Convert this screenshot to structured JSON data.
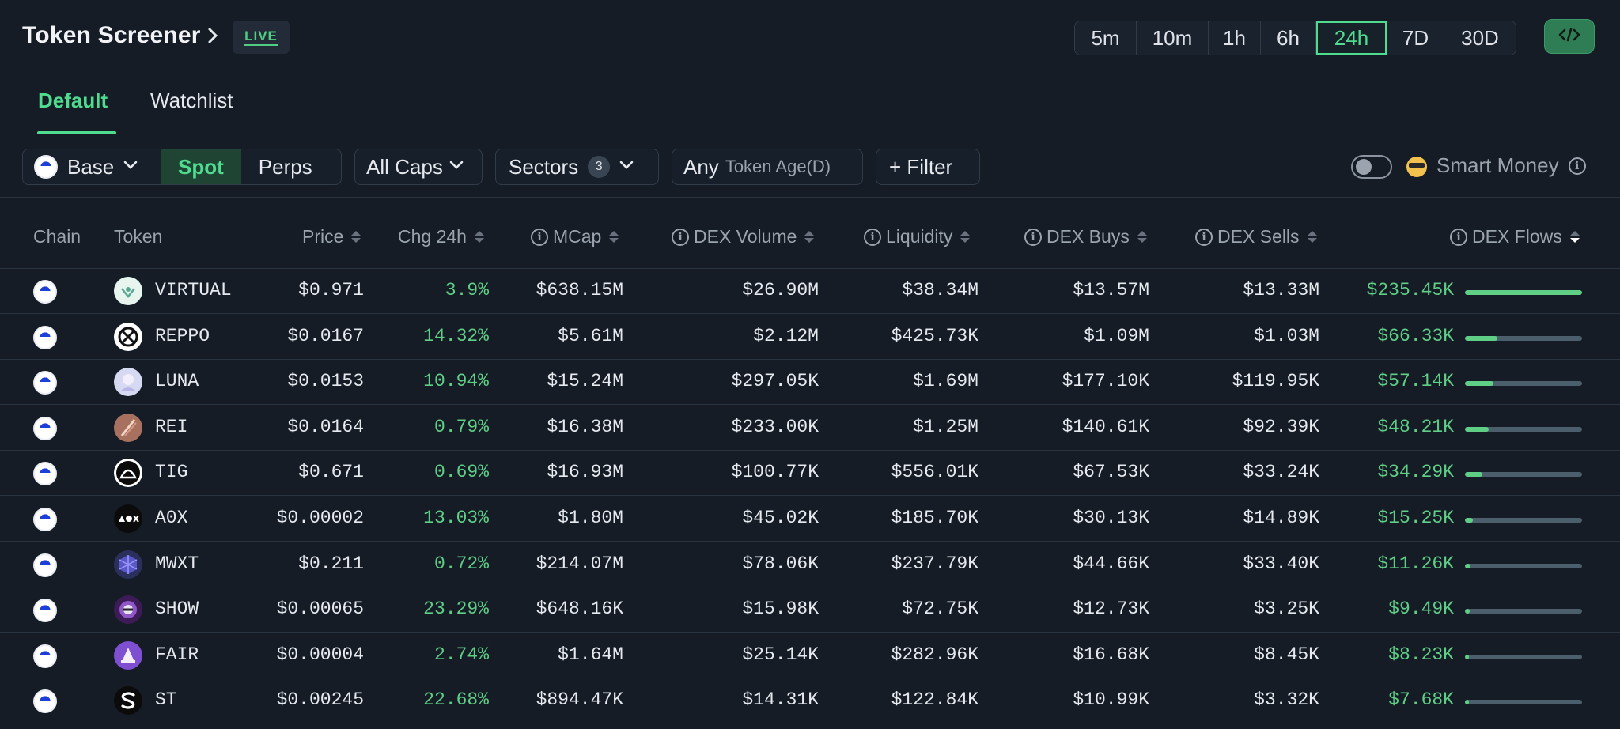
{
  "header": {
    "title": "Token Screener",
    "live_label": "LIVE",
    "timeframes": [
      "5m",
      "10m",
      "1h",
      "6h",
      "24h",
      "7D",
      "30D"
    ],
    "active_timeframe": "24h"
  },
  "tabs": [
    {
      "label": "Default",
      "active": true
    },
    {
      "label": "Watchlist",
      "active": false
    }
  ],
  "filters": {
    "chain": "Base",
    "market_types": [
      "Spot",
      "Perps"
    ],
    "active_market_type": "Spot",
    "caps": "All Caps",
    "sectors_label": "Sectors",
    "sectors_count": "3",
    "age_value": "Any",
    "age_label": "Token Age(D)",
    "filter_label": "+ Filter",
    "smart_money_label": "Smart Money",
    "smart_money_enabled": false
  },
  "table": {
    "columns": [
      "Chain",
      "Token",
      "Price",
      "Chg 24h",
      "MCap",
      "DEX Volume",
      "Liquidity",
      "DEX Buys",
      "DEX Sells",
      "DEX Flows"
    ],
    "rows": [
      {
        "token": "VIRTUAL",
        "price": "$0.971",
        "chg": "3.9%",
        "mcap": "$638.15M",
        "volume": "$26.90M",
        "liquidity": "$38.34M",
        "buys": "$13.57M",
        "sells": "$13.33M",
        "flows": "$235.45K",
        "flow_ratio": 1.0
      },
      {
        "token": "REPPO",
        "price": "$0.0167",
        "chg": "14.32%",
        "mcap": "$5.61M",
        "volume": "$2.12M",
        "liquidity": "$425.73K",
        "buys": "$1.09M",
        "sells": "$1.03M",
        "flows": "$66.33K",
        "flow_ratio": 0.28
      },
      {
        "token": "LUNA",
        "price": "$0.0153",
        "chg": "10.94%",
        "mcap": "$15.24M",
        "volume": "$297.05K",
        "liquidity": "$1.69M",
        "buys": "$177.10K",
        "sells": "$119.95K",
        "flows": "$57.14K",
        "flow_ratio": 0.24
      },
      {
        "token": "REI",
        "price": "$0.0164",
        "chg": "0.79%",
        "mcap": "$16.38M",
        "volume": "$233.00K",
        "liquidity": "$1.25M",
        "buys": "$140.61K",
        "sells": "$92.39K",
        "flows": "$48.21K",
        "flow_ratio": 0.2
      },
      {
        "token": "TIG",
        "price": "$0.671",
        "chg": "0.69%",
        "mcap": "$16.93M",
        "volume": "$100.77K",
        "liquidity": "$556.01K",
        "buys": "$67.53K",
        "sells": "$33.24K",
        "flows": "$34.29K",
        "flow_ratio": 0.146
      },
      {
        "token": "A0X",
        "price": "$0.00002",
        "chg": "13.03%",
        "mcap": "$1.80M",
        "volume": "$45.02K",
        "liquidity": "$185.70K",
        "buys": "$30.13K",
        "sells": "$14.89K",
        "flows": "$15.25K",
        "flow_ratio": 0.065
      },
      {
        "token": "MWXT",
        "price": "$0.211",
        "chg": "0.72%",
        "mcap": "$214.07M",
        "volume": "$78.06K",
        "liquidity": "$237.79K",
        "buys": "$44.66K",
        "sells": "$33.40K",
        "flows": "$11.26K",
        "flow_ratio": 0.048
      },
      {
        "token": "SHOW",
        "price": "$0.00065",
        "chg": "23.29%",
        "mcap": "$648.16K",
        "volume": "$15.98K",
        "liquidity": "$72.75K",
        "buys": "$12.73K",
        "sells": "$3.25K",
        "flows": "$9.49K",
        "flow_ratio": 0.04
      },
      {
        "token": "FAIR",
        "price": "$0.00004",
        "chg": "2.74%",
        "mcap": "$1.64M",
        "volume": "$25.14K",
        "liquidity": "$282.96K",
        "buys": "$16.68K",
        "sells": "$8.45K",
        "flows": "$8.23K",
        "flow_ratio": 0.035
      },
      {
        "token": "ST",
        "price": "$0.00245",
        "chg": "22.68%",
        "mcap": "$894.47K",
        "volume": "$14.31K",
        "liquidity": "$122.84K",
        "buys": "$10.99K",
        "sells": "$3.32K",
        "flows": "$7.68K",
        "flow_ratio": 0.033
      }
    ]
  },
  "colors": {
    "background": "#151c26",
    "accent_green": "#4fdc8e",
    "positive": "#5fcf86",
    "muted": "#9aa3ae",
    "chain_base": "#1c3fd8"
  }
}
